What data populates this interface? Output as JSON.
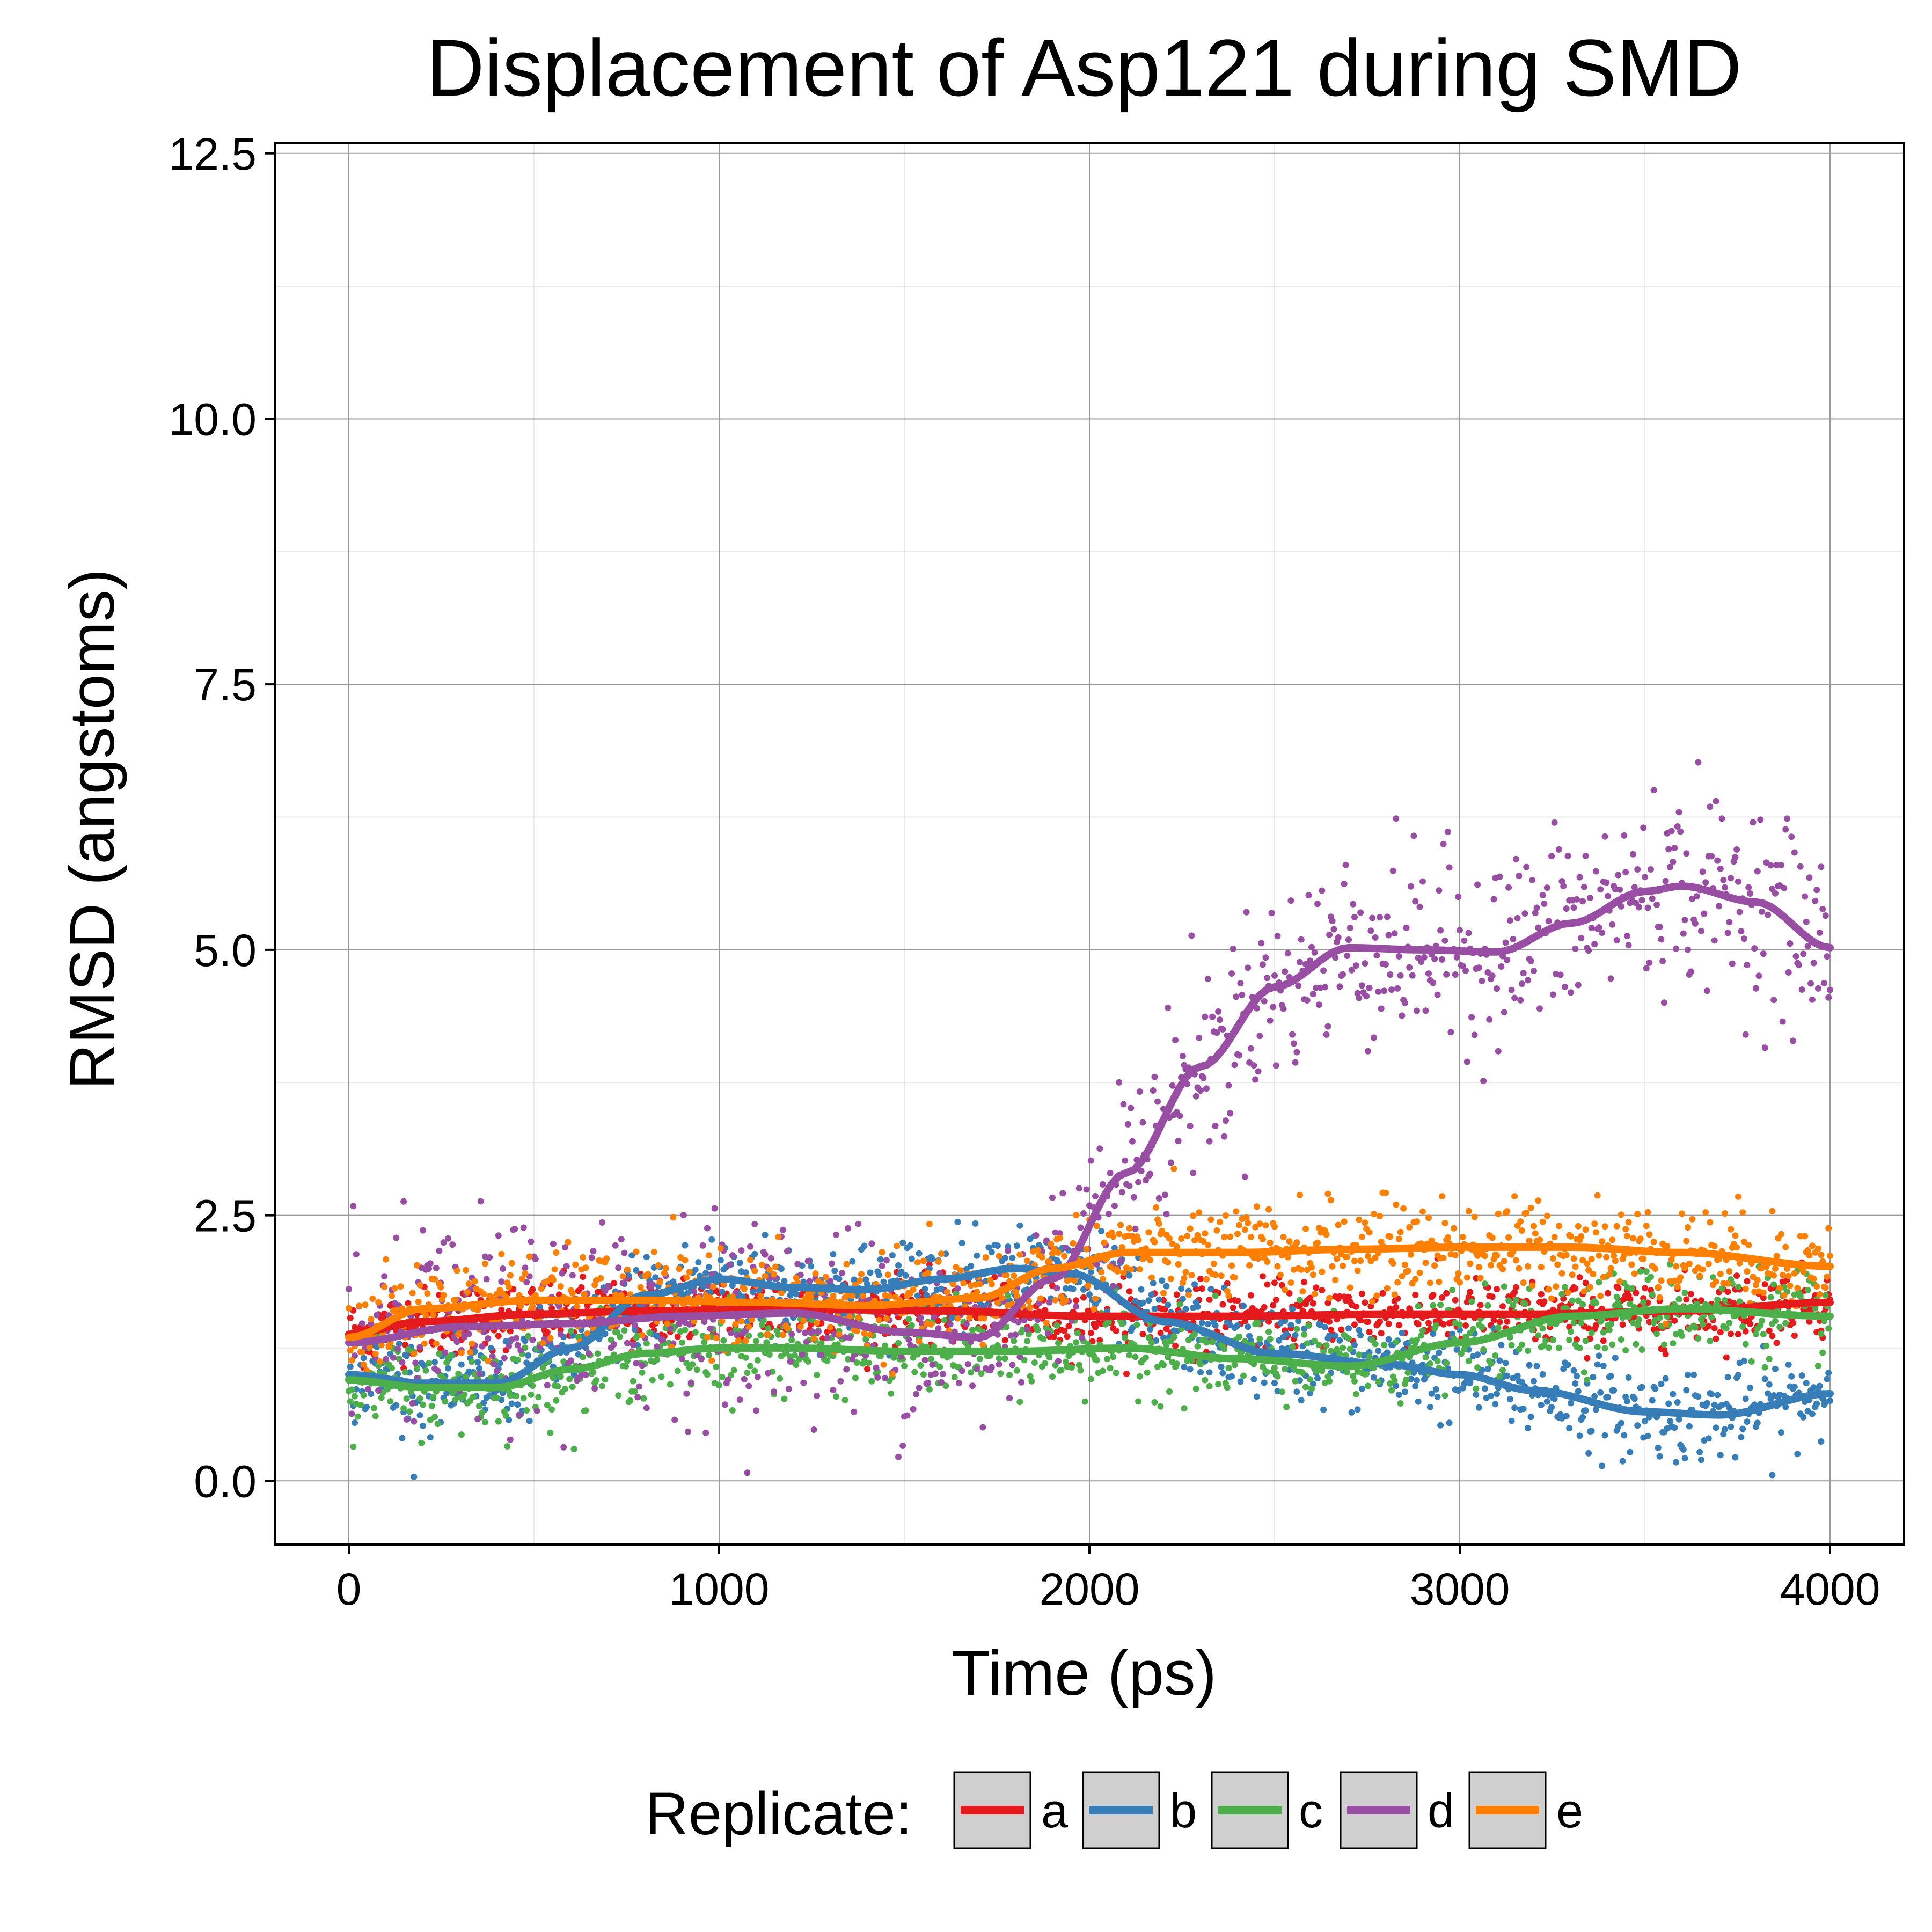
{
  "chart_data": {
    "type": "scatter",
    "title": "Displacement of Asp121 during SMD",
    "xlabel": "Time (ps)",
    "ylabel": "RMSD (angstoms)",
    "xlim": [
      -200,
      4200
    ],
    "ylim": [
      -0.6,
      12.6
    ],
    "x_ticks": [
      0,
      1000,
      2000,
      3000,
      4000
    ],
    "x_tick_labels": [
      "0",
      "1000",
      "2000",
      "3000",
      "4000"
    ],
    "y_ticks": [
      0,
      2.5,
      5,
      7.5,
      10,
      12.5
    ],
    "y_tick_labels": [
      "0.0",
      "2.5",
      "5.0",
      "7.5",
      "10.0",
      "12.5"
    ],
    "grid": true,
    "legend": {
      "title": "Replicate:",
      "position": "bottom"
    },
    "series": [
      {
        "name": "a",
        "color": "#E41A1C",
        "noise": 0.16,
        "smooth": [
          [
            0,
            1.38
          ],
          [
            200,
            1.5
          ],
          [
            500,
            1.57
          ],
          [
            800,
            1.6
          ],
          [
            1200,
            1.62
          ],
          [
            1600,
            1.6
          ],
          [
            2000,
            1.55
          ],
          [
            2400,
            1.55
          ],
          [
            2800,
            1.57
          ],
          [
            3200,
            1.57
          ],
          [
            3600,
            1.6
          ],
          [
            4000,
            1.68
          ]
        ]
      },
      {
        "name": "b",
        "color": "#377EB8",
        "noise": 0.22,
        "smooth": [
          [
            0,
            1.0
          ],
          [
            200,
            0.92
          ],
          [
            400,
            0.92
          ],
          [
            600,
            1.25
          ],
          [
            800,
            1.75
          ],
          [
            1000,
            1.9
          ],
          [
            1200,
            1.82
          ],
          [
            1400,
            1.8
          ],
          [
            1600,
            1.9
          ],
          [
            1800,
            2.0
          ],
          [
            1950,
            1.95
          ],
          [
            2200,
            1.5
          ],
          [
            2500,
            1.2
          ],
          [
            2800,
            1.1
          ],
          [
            3000,
            1.0
          ],
          [
            3200,
            0.85
          ],
          [
            3500,
            0.65
          ],
          [
            3700,
            0.62
          ],
          [
            4000,
            0.82
          ]
        ]
      },
      {
        "name": "c",
        "color": "#4DAF4A",
        "noise": 0.2,
        "smooth": [
          [
            0,
            0.95
          ],
          [
            200,
            0.88
          ],
          [
            400,
            0.88
          ],
          [
            600,
            1.05
          ],
          [
            800,
            1.2
          ],
          [
            1000,
            1.25
          ],
          [
            1200,
            1.25
          ],
          [
            1500,
            1.22
          ],
          [
            1800,
            1.22
          ],
          [
            2100,
            1.25
          ],
          [
            2400,
            1.15
          ],
          [
            2700,
            1.08
          ],
          [
            3000,
            1.3
          ],
          [
            3300,
            1.55
          ],
          [
            3600,
            1.62
          ],
          [
            4000,
            1.55
          ]
        ]
      },
      {
        "name": "d",
        "color": "#984EA3",
        "noise": 0.45,
        "smooth": [
          [
            0,
            1.3
          ],
          [
            300,
            1.45
          ],
          [
            600,
            1.48
          ],
          [
            900,
            1.55
          ],
          [
            1200,
            1.58
          ],
          [
            1500,
            1.4
          ],
          [
            1700,
            1.35
          ],
          [
            1900,
            1.9
          ],
          [
            2100,
            2.9
          ],
          [
            2300,
            3.9
          ],
          [
            2500,
            4.65
          ],
          [
            2700,
            5.02
          ],
          [
            2900,
            5.0
          ],
          [
            3100,
            4.98
          ],
          [
            3300,
            5.25
          ],
          [
            3500,
            5.55
          ],
          [
            3600,
            5.6
          ],
          [
            3800,
            5.45
          ],
          [
            4000,
            5.02
          ]
        ]
      },
      {
        "name": "e",
        "color": "#FF7F00",
        "noise": 0.22,
        "smooth": [
          [
            0,
            1.35
          ],
          [
            200,
            1.62
          ],
          [
            500,
            1.7
          ],
          [
            800,
            1.7
          ],
          [
            1100,
            1.68
          ],
          [
            1400,
            1.65
          ],
          [
            1700,
            1.72
          ],
          [
            1900,
            2.0
          ],
          [
            2100,
            2.15
          ],
          [
            2400,
            2.15
          ],
          [
            2700,
            2.18
          ],
          [
            3000,
            2.2
          ],
          [
            3300,
            2.2
          ],
          [
            3600,
            2.15
          ],
          [
            4000,
            2.02
          ]
        ]
      }
    ]
  }
}
